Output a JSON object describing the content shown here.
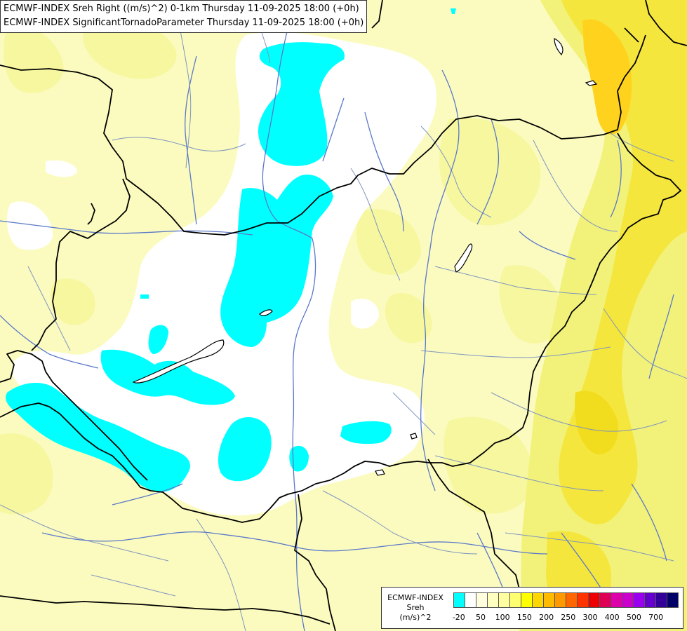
{
  "titles": {
    "line1": "ECMWF-INDEX Sreh Right ((m/s)^2) 0-1km Thursday 11-09-2025 18:00 (+0h)",
    "line2": "ECMWF-INDEX SignificantTornadoParameter Thursday 11-09-2025 18:00 (+0h)"
  },
  "colors": {
    "cyan": "#00ffff",
    "white": "#ffffff",
    "pale_yellow": "#fbfbc0",
    "light_yellow": "#f7f7a0",
    "yellow": "#f2f27a",
    "bright_yellow": "#f5e63d",
    "gold": "#ffd21e",
    "border": "#000000",
    "river": "#5a78c8",
    "region": "#7f95bd"
  },
  "legend": {
    "name": "ECMWF-INDEX",
    "param": "Sreh",
    "unit": "(m/s)^2",
    "colors": [
      "#00ffff",
      "#ffffff",
      "#ffffe0",
      "#ffffc0",
      "#ffffa0",
      "#ffff70",
      "#ffff00",
      "#ffd700",
      "#ffbb00",
      "#ff9900",
      "#ff6600",
      "#ff3300",
      "#ee0000",
      "#dd0055",
      "#dd00aa",
      "#cc00cc",
      "#9900ee",
      "#6600cc",
      "#330099",
      "#000066"
    ],
    "ticks": [
      {
        "label": "-20",
        "index": 0.5
      },
      {
        "label": "50",
        "index": 2.5
      },
      {
        "label": "100",
        "index": 4.5
      },
      {
        "label": "150",
        "index": 6.5
      },
      {
        "label": "200",
        "index": 8.5
      },
      {
        "label": "250",
        "index": 10.5
      },
      {
        "label": "300",
        "index": 12.5
      },
      {
        "label": "400",
        "index": 14.5
      },
      {
        "label": "500",
        "index": 16.5
      },
      {
        "label": "700",
        "index": 18.5
      }
    ]
  }
}
